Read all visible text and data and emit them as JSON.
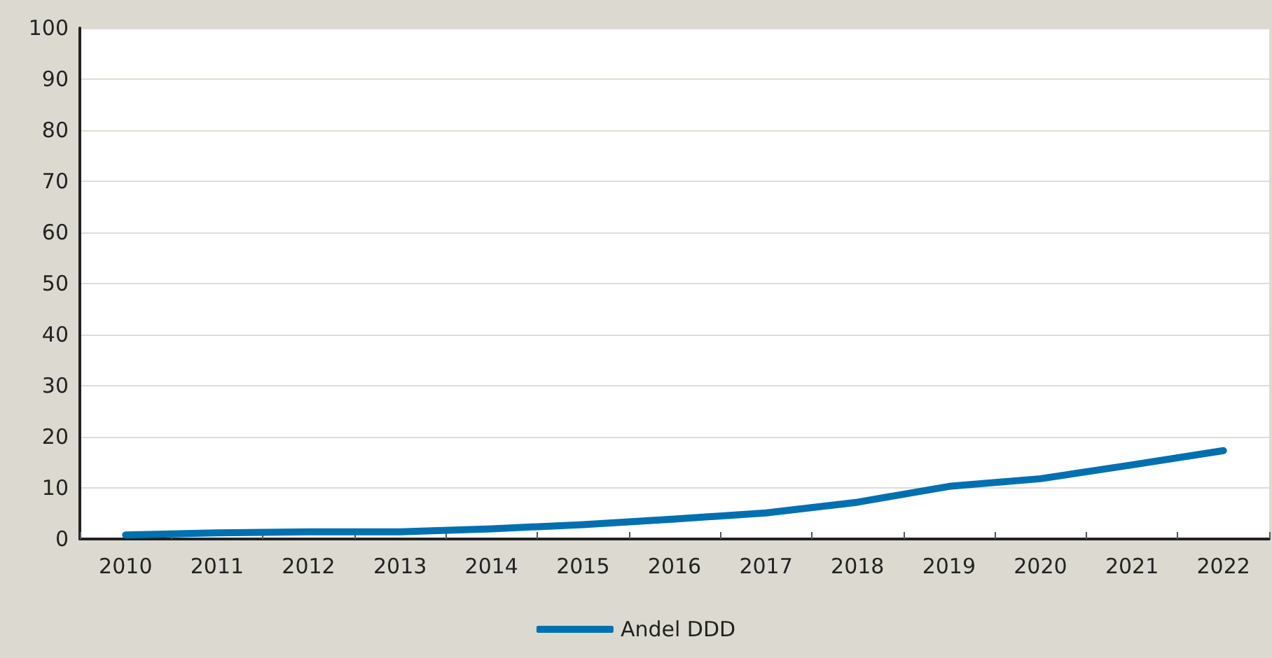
{
  "chart_data": {
    "type": "line",
    "categories": [
      "2010",
      "2011",
      "2012",
      "2013",
      "2014",
      "2015",
      "2016",
      "2017",
      "2018",
      "2019",
      "2020",
      "2021",
      "2022"
    ],
    "series": [
      {
        "name": "Andel DDD",
        "color": "#0070b0",
        "values": [
          0.8,
          1.2,
          1.4,
          1.4,
          2.0,
          2.8,
          3.9,
          5.1,
          7.2,
          10.3,
          11.8,
          14.5,
          17.3
        ]
      }
    ],
    "ylim": [
      0,
      100
    ],
    "yticks": [
      0,
      10,
      20,
      30,
      40,
      50,
      60,
      70,
      80,
      90,
      100
    ],
    "grid": "y",
    "legend": "bottom",
    "marker": "none",
    "line_style": "solid"
  }
}
